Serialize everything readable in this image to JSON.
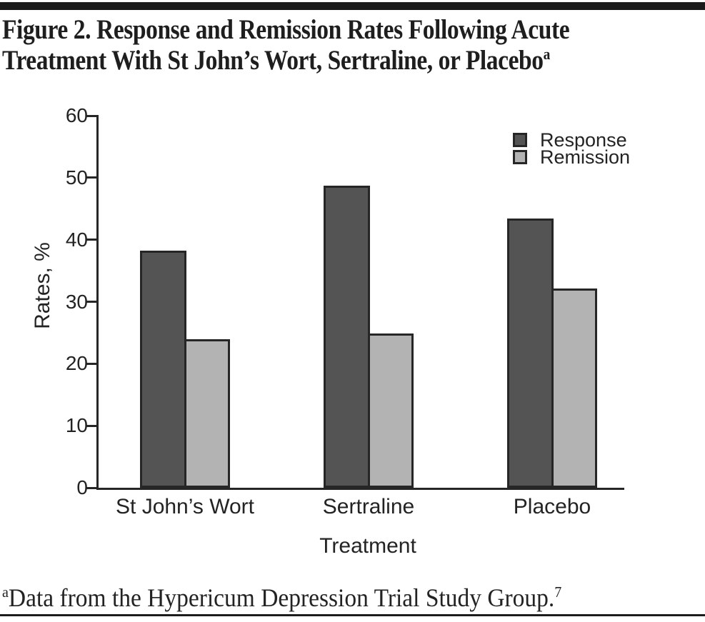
{
  "figure": {
    "title_line1": "Figure 2. Response and Remission Rates Following Acute",
    "title_line2": "Treatment With St John’s Wort, Sertraline, or Placebo",
    "title_superscript": "a",
    "footnote_superscript": "a",
    "footnote_text": "Data from the Hypericum Depression Trial Study Group.",
    "footnote_ref_superscript": "7"
  },
  "colors": {
    "response_bar": "#545454",
    "remission_bar": "#b3b3b3",
    "axis": "#262626",
    "rule": "#1c1c1c"
  },
  "chart_data": {
    "type": "bar",
    "title": "",
    "categories": [
      "St John’s Wort",
      "Sertraline",
      "Placebo"
    ],
    "series": [
      {
        "name": "Response",
        "color": "#545454",
        "values": [
          38.2,
          48.7,
          43.4
        ]
      },
      {
        "name": "Remission",
        "color": "#b3b3b3",
        "values": [
          23.9,
          24.9,
          32.1
        ]
      }
    ],
    "xlabel": "Treatment",
    "ylabel": "Rates, %",
    "ylim": [
      0,
      60
    ],
    "ytick_step": 10,
    "grid": false,
    "legend_position": "top-right"
  }
}
